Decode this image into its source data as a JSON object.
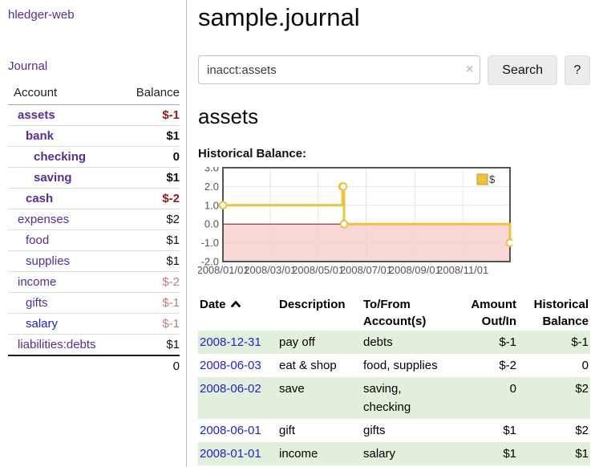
{
  "sidebar": {
    "brand": "hledger-web",
    "nav_journal": "Journal",
    "headers": {
      "account": "Account",
      "balance": "Balance"
    },
    "accounts": [
      {
        "name": "assets",
        "depth": 1,
        "bold": true,
        "link_color": "purple",
        "balance": "$-1",
        "balance_color": "darkred"
      },
      {
        "name": "bank",
        "depth": 2,
        "bold": true,
        "link_color": "purple",
        "balance": "$1",
        "balance_color": "black"
      },
      {
        "name": "checking",
        "depth": 3,
        "bold": true,
        "link_color": "purple",
        "balance": "0",
        "balance_color": "black"
      },
      {
        "name": "saving",
        "depth": 3,
        "bold": true,
        "link_color": "purple",
        "balance": "$1",
        "balance_color": "black"
      },
      {
        "name": "cash",
        "depth": 2,
        "bold": true,
        "link_color": "purple",
        "balance": "$-2",
        "balance_color": "darkred"
      },
      {
        "name": "expenses",
        "depth": 1,
        "bold": false,
        "link_color": "purple",
        "balance": "$2",
        "balance_color": "black"
      },
      {
        "name": "food",
        "depth": 2,
        "bold": false,
        "link_color": "purple",
        "balance": "$1",
        "balance_color": "black"
      },
      {
        "name": "supplies",
        "depth": 2,
        "bold": false,
        "link_color": "purple",
        "balance": "$1",
        "balance_color": "black"
      },
      {
        "name": "income",
        "depth": 1,
        "bold": false,
        "link_color": "purple",
        "balance": "$-2",
        "balance_color": "rose"
      },
      {
        "name": "gifts",
        "depth": 2,
        "bold": false,
        "link_color": "purple",
        "balance": "$-1",
        "balance_color": "rose"
      },
      {
        "name": "salary",
        "depth": 2,
        "bold": false,
        "link_color": "blue",
        "balance": "$-1",
        "balance_color": "rose"
      },
      {
        "name": "liabilities:debts",
        "depth": 1,
        "bold": false,
        "link_color": "purple",
        "balance": "$1",
        "balance_color": "black"
      }
    ],
    "total": "0"
  },
  "main": {
    "title": "sample.journal",
    "search": {
      "value": "inacct:assets",
      "clear": "×",
      "submit": "Search",
      "help": "?"
    },
    "account_heading": "assets",
    "section_label": "Historical Balance:"
  },
  "chart_data": {
    "type": "line",
    "step": true,
    "title": "Historical Balance:",
    "legend": [
      {
        "label": "$",
        "color": "#edc240"
      }
    ],
    "legend_position": "top-right",
    "x_range": [
      "2008-01-01",
      "2008-12-31"
    ],
    "x_ticks": [
      "2008/01/01",
      "2008/03/01",
      "2008/05/01",
      "2008/07/01",
      "2008/09/01",
      "2008/11/01"
    ],
    "y_ticks": [
      "3.0",
      "2.0",
      "1.0",
      "0.0",
      "-1.0",
      "-2.0"
    ],
    "ylim": [
      -2,
      3
    ],
    "grid": true,
    "border_color": "#545454",
    "grid_color": "#e6e6e6",
    "negative_region_fill": "#f6cccc",
    "zero_line_color": "#7a1a1a",
    "series": [
      {
        "name": "$",
        "color": "#edc240",
        "marker": "open-circle",
        "points": [
          {
            "date": "2008-01-01",
            "value": 1
          },
          {
            "date": "2008-06-01",
            "value": 2
          },
          {
            "date": "2008-06-02",
            "value": 2
          },
          {
            "date": "2008-06-03",
            "value": 0
          },
          {
            "date": "2008-12-31",
            "value": -1
          }
        ]
      }
    ]
  },
  "register": {
    "columns": [
      "Date",
      "Description",
      "To/From Account(s)",
      "Amount Out/In",
      "Historical Balance"
    ],
    "sort": {
      "column": "Date",
      "icon": "chevron-up"
    },
    "rows": [
      {
        "date": "2008-12-31",
        "description": "pay off",
        "accounts": "debts",
        "amount": "$-1",
        "amount_negative": true,
        "balance": "$-1",
        "balance_negative": true
      },
      {
        "date": "2008-06-03",
        "description": "eat & shop",
        "accounts": "food, supplies",
        "amount": "$-2",
        "amount_negative": true,
        "balance": "0",
        "balance_negative": false
      },
      {
        "date": "2008-06-02",
        "description": "save",
        "accounts": "saving, checking",
        "amount": "0",
        "amount_negative": false,
        "balance": "$2",
        "balance_negative": false
      },
      {
        "date": "2008-06-01",
        "description": "gift",
        "accounts": "gifts",
        "amount": "$1",
        "amount_negative": false,
        "balance": "$2",
        "balance_negative": false
      },
      {
        "date": "2008-01-01",
        "description": "income",
        "accounts": "salary",
        "amount": "$1",
        "amount_negative": false,
        "balance": "$1",
        "balance_negative": false
      }
    ]
  }
}
